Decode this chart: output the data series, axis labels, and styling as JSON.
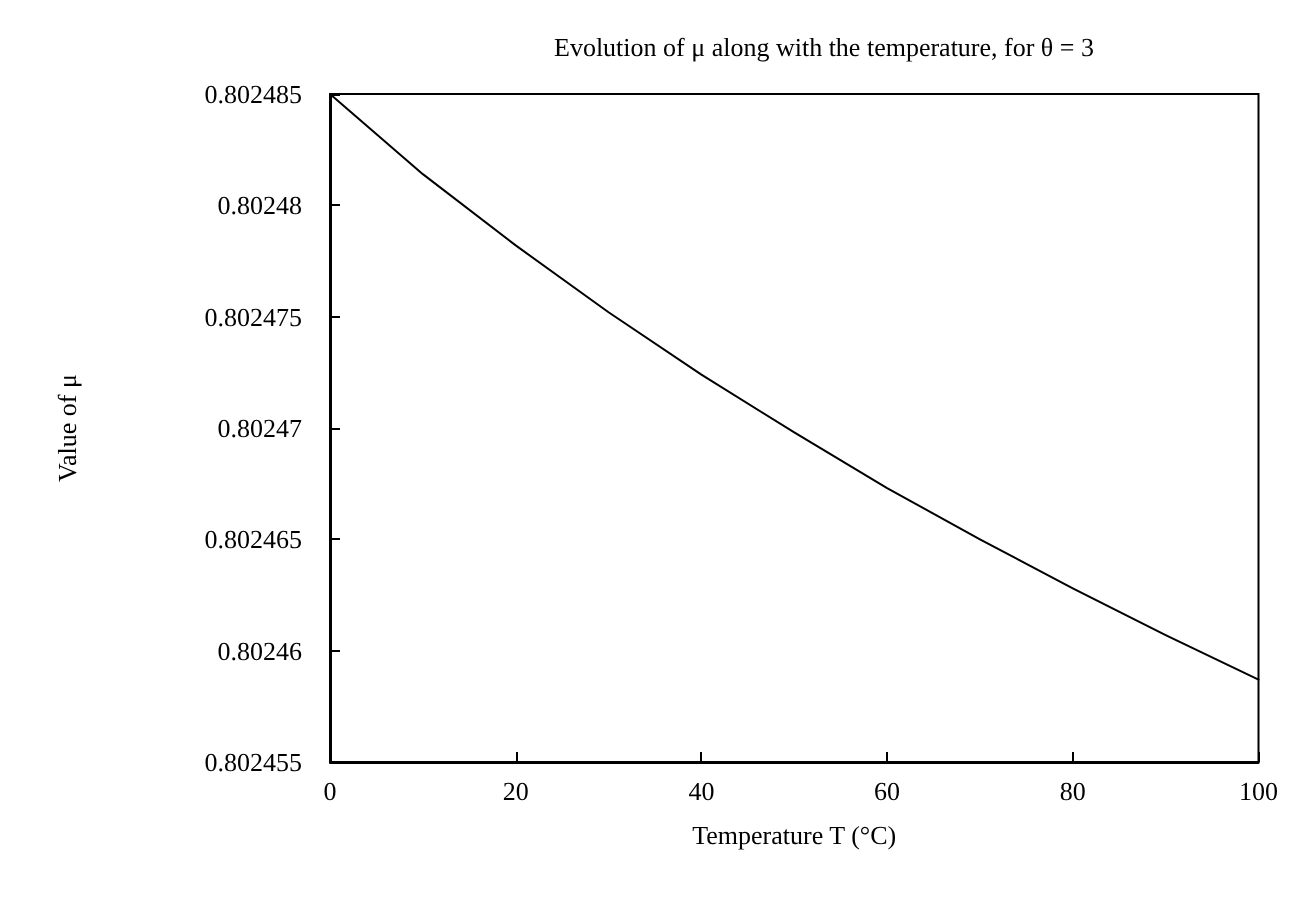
{
  "chart_data": {
    "type": "line",
    "title": "Evolution of μ along with the temperature, for θ = 3",
    "xlabel": "Temperature T (°C)",
    "ylabel": "Value of μ",
    "x": [
      0,
      10,
      20,
      30,
      40,
      50,
      60,
      70,
      80,
      90,
      100
    ],
    "series": [
      {
        "color": "#000000",
        "values": [
          0.802485,
          0.8024814,
          0.8024782,
          0.8024752,
          0.8024724,
          0.8024698,
          0.8024673,
          0.802465,
          0.8024628,
          0.8024607,
          0.8024587
        ]
      }
    ],
    "xlim": [
      0,
      100
    ],
    "xticks": [
      0,
      20,
      40,
      60,
      80,
      100
    ],
    "ylim": [
      0.802455,
      0.802485
    ],
    "yticks": [
      0.802455,
      0.80246,
      0.802465,
      0.80247,
      0.802475,
      0.80248,
      0.802485
    ],
    "grid": false,
    "marker": "none",
    "line_style": "solid"
  }
}
